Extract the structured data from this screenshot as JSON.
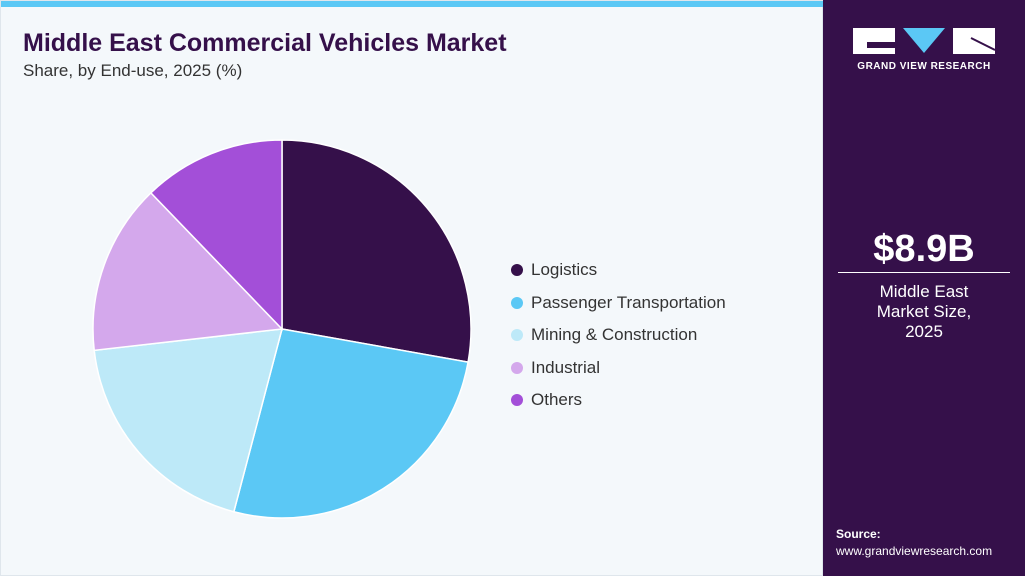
{
  "header": {
    "title": "Middle East Commercial Vehicles Market",
    "subtitle": "Share, by End-use, 2025 (%)"
  },
  "chart_data": {
    "type": "pie",
    "title": "Middle East Commercial Vehicles Market",
    "subtitle": "Share, by End-use, 2025 (%)",
    "categories": [
      "Logistics",
      "Passenger Transportation",
      "Mining & Construction",
      "Industrial",
      "Others"
    ],
    "values": [
      27.8,
      26.3,
      19.1,
      14.6,
      12.2
    ],
    "colors": [
      "#35104a",
      "#5bc8f5",
      "#bde9f8",
      "#d4a8ec",
      "#a34fd8"
    ],
    "legend_position": "right"
  },
  "sidebar": {
    "logo_text": "GRAND VIEW RESEARCH",
    "market_value": "$8.9B",
    "market_label_lines": [
      "Middle East",
      "Market Size,",
      "2025"
    ],
    "source_label": "Source:",
    "source_url": "www.grandviewresearch.com"
  }
}
